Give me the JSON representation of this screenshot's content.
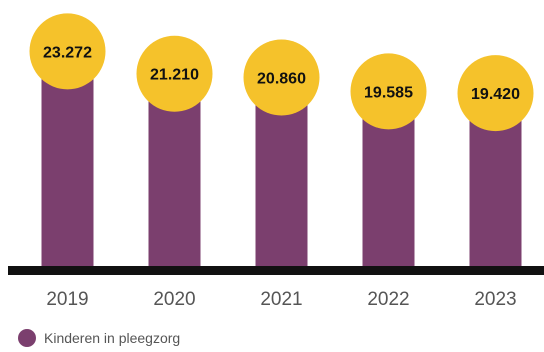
{
  "chart_data": {
    "type": "bar",
    "categories": [
      "2019",
      "2020",
      "2021",
      "2022",
      "2023"
    ],
    "series": [
      {
        "name": "Kinderen in pleegzorg",
        "values": [
          23272,
          21210,
          20860,
          19585,
          19420
        ],
        "value_labels": [
          "23.272",
          "21.210",
          "20.860",
          "19.585",
          "19.420"
        ]
      }
    ],
    "ylim": [
      0,
      24500
    ],
    "legend_position": "bottom-left",
    "grid": false,
    "colors": {
      "bar": "#7b3f6e",
      "bubble": "#f5c22b",
      "baseline": "#111111",
      "tick_text": "#555555",
      "label_text": "#111111"
    }
  },
  "legend": {
    "label": "Kinderen in pleegzorg"
  }
}
